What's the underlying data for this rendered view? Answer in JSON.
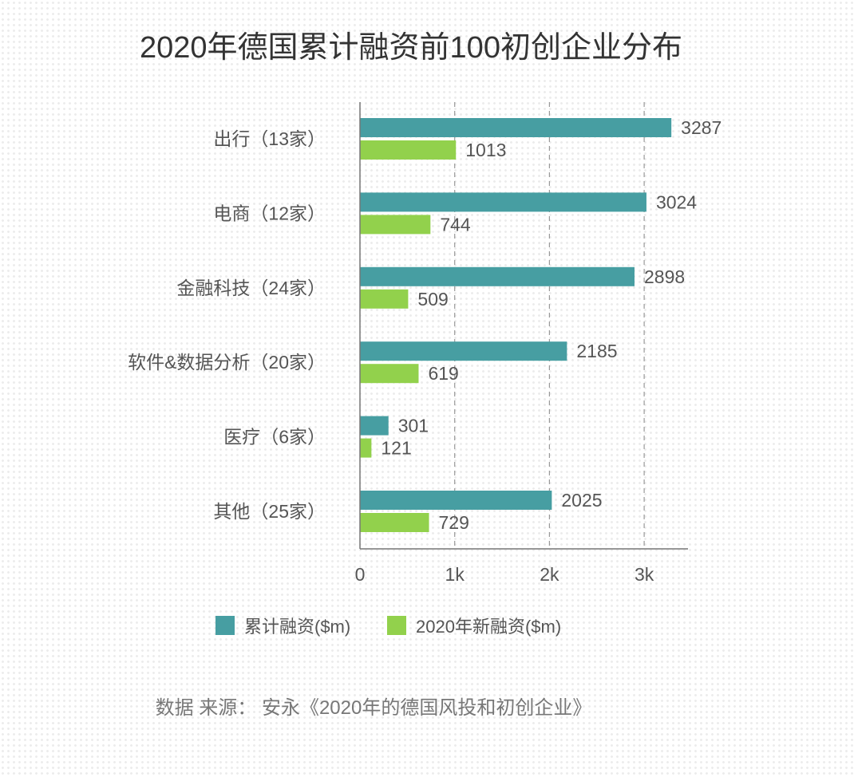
{
  "chart_data": {
    "type": "bar",
    "orientation": "horizontal",
    "title": "2020年德国累计融资前100初创企业分布",
    "categories": [
      "出行（13家）",
      "电商（12家）",
      "金融科技（24家）",
      "软件&数据分析（20家）",
      "医疗（6家）",
      "其他（25家）"
    ],
    "series": [
      {
        "name": "累计融资($m)",
        "values": [
          3287,
          3024,
          2898,
          2185,
          301,
          2025
        ],
        "color": "#479ea2"
      },
      {
        "name": "2020年新融资($m)",
        "values": [
          1013,
          744,
          509,
          619,
          121,
          729
        ],
        "color": "#92d14c"
      }
    ],
    "xlim": [
      0,
      3500
    ],
    "xticks": [
      {
        "value": 0,
        "label": "0"
      },
      {
        "value": 1000,
        "label": "1k"
      },
      {
        "value": 2000,
        "label": "2k"
      },
      {
        "value": 3000,
        "label": "3k"
      }
    ],
    "grid": "dashed vertical",
    "legend": "bottom-center",
    "source": "数据 来源： 安永《2020年的德国风投和初创企业》"
  }
}
